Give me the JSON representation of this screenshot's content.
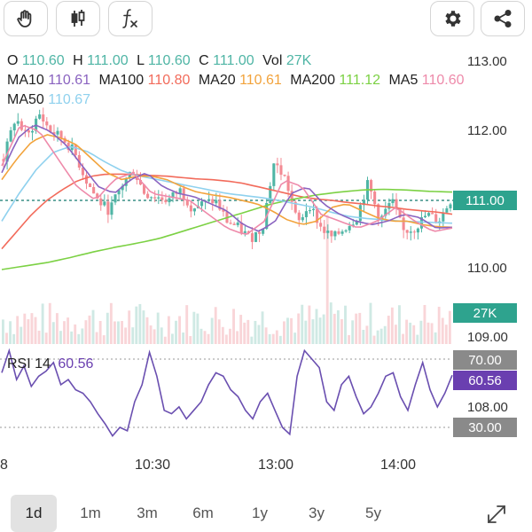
{
  "colors": {
    "up": "#4fb5a5",
    "down": "#f38a93",
    "ma10": "#8a63c0",
    "ma100": "#f26b5b",
    "ma20": "#f2a33c",
    "ma200": "#7cd144",
    "ma5": "#ee8aaa",
    "ma50": "#8fd1ee",
    "badge_price": "#2ea38e",
    "badge_rsi": "#6a3fb0",
    "badge_gray": "#8a8a8a",
    "rsi_line": "#6a4fb0"
  },
  "toolbar": {
    "icons": [
      "hand-icon",
      "candlestick-icon",
      "function-icon",
      "gear-icon",
      "share-icon"
    ]
  },
  "ohlc": {
    "o_label": "O",
    "o_value": "110.60",
    "h_label": "H",
    "h_value": "111.00",
    "l_label": "L",
    "l_value": "110.60",
    "c_label": "C",
    "c_value": "111.00",
    "vol_label": "Vol",
    "vol_value": "27K"
  },
  "indicators": {
    "ma10_label": "MA10",
    "ma10_value": "110.61",
    "ma100_label": "MA100",
    "ma100_value": "110.80",
    "ma20_label": "MA20",
    "ma20_value": "110.61",
    "ma200_label": "MA200",
    "ma200_value": "111.12",
    "ma5_label": "MA5",
    "ma5_value": "110.60",
    "ma50_label": "MA50",
    "ma50_value": "110.67"
  },
  "rsi": {
    "label": "RSI 14",
    "value": "60.56"
  },
  "badges": {
    "price": "111.00",
    "volume": "27K",
    "rsi_high": "70.00",
    "rsi_value": "60.56",
    "rsi_low": "30.00"
  },
  "range_tabs": [
    "1d",
    "1m",
    "3m",
    "6m",
    "1y",
    "3y",
    "5y"
  ],
  "active_range": "1d",
  "chart_data": [
    {
      "type": "candlestick",
      "title": "",
      "ylim": [
        109.0,
        113.1
      ],
      "yticks": [
        "113.00",
        "112.00",
        "111.00",
        "110.00",
        "109.00"
      ],
      "x_ticks": [
        "8",
        "10:30",
        "13:00",
        "14:00"
      ],
      "last_price": 111.0,
      "close_path": [
        111.6,
        112.2,
        111.9,
        112.25,
        112.0,
        111.9,
        111.7,
        111.3,
        111.0,
        110.85,
        111.2,
        111.45,
        111.1,
        111.05,
        111.0,
        111.15,
        110.9,
        110.95,
        111.0,
        110.7,
        110.6,
        110.45,
        110.6,
        111.55,
        111.3,
        110.65,
        110.95,
        110.6,
        110.45,
        110.6,
        110.75,
        111.25,
        110.7,
        111.0,
        110.55,
        110.6,
        110.8,
        110.7,
        111.0
      ],
      "series": [
        {
          "name": "MA100",
          "values": [
            110.3,
            110.55,
            110.8,
            111.0,
            111.15,
            111.28,
            111.35,
            111.38,
            111.38,
            111.37,
            111.36,
            111.35,
            111.33,
            111.31,
            111.3,
            111.28,
            111.25,
            111.2,
            111.15,
            111.1,
            111.05,
            111.02,
            111.0,
            110.97,
            110.95,
            110.92,
            110.9,
            110.87,
            110.85,
            110.83,
            110.8
          ]
        },
        {
          "name": "MA200",
          "values": [
            110.0,
            110.05,
            110.1,
            110.17,
            110.25,
            110.32,
            110.38,
            110.45,
            110.55,
            110.65,
            110.75,
            110.85,
            110.95,
            111.02,
            111.08,
            111.12,
            111.15,
            111.16,
            111.15,
            111.13,
            111.12
          ]
        },
        {
          "name": "MA50",
          "values": [
            110.7,
            111.1,
            111.45,
            111.7,
            111.78,
            111.7,
            111.55,
            111.42,
            111.35,
            111.3,
            111.25,
            111.2,
            111.15,
            111.1,
            111.07,
            111.04,
            111.0,
            110.95,
            110.9,
            110.83,
            110.77,
            110.74,
            110.72,
            110.7,
            110.69,
            110.68,
            110.67
          ]
        },
        {
          "name": "MA20",
          "values": [
            111.3,
            111.6,
            111.85,
            111.95,
            111.9,
            111.8,
            111.6,
            111.4,
            111.3,
            111.35,
            111.35,
            111.3,
            111.2,
            111.12,
            111.08,
            111.05,
            111.0,
            110.95,
            110.85,
            110.72,
            110.65,
            110.7,
            110.9,
            110.95,
            110.85,
            110.75,
            110.7,
            110.7,
            110.65,
            110.62,
            110.61
          ]
        },
        {
          "name": "MA10",
          "values": [
            111.4,
            111.9,
            112.1,
            112.0,
            111.8,
            111.5,
            111.2,
            111.1,
            111.3,
            111.4,
            111.2,
            111.1,
            111.05,
            110.95,
            110.85,
            110.65,
            110.55,
            110.7,
            111.1,
            111.2,
            110.95,
            110.8,
            110.7,
            110.65,
            110.7,
            110.8,
            110.75,
            110.6,
            110.61
          ]
        },
        {
          "name": "MA5",
          "values": [
            111.5,
            112.1,
            112.0,
            111.6,
            111.2,
            111.0,
            111.3,
            111.4,
            111.1,
            111.05,
            111.0,
            110.8,
            110.6,
            110.5,
            110.7,
            111.3,
            111.2,
            110.8,
            110.7,
            110.6,
            110.7,
            110.9,
            110.7,
            110.55,
            110.6
          ]
        }
      ]
    },
    {
      "type": "line",
      "title": "",
      "ylim": [
        0,
        100
      ],
      "yticks": [
        "108.00"
      ],
      "levels": [
        70,
        30
      ],
      "series": [
        {
          "name": "RSI 14",
          "values": [
            62,
            75,
            58,
            66,
            54,
            60,
            63,
            68,
            55,
            58,
            52,
            50,
            45,
            38,
            32,
            25,
            30,
            28,
            45,
            55,
            74,
            60,
            40,
            38,
            42,
            35,
            40,
            45,
            55,
            62,
            60,
            52,
            48,
            40,
            35,
            45,
            50,
            40,
            30,
            26,
            60,
            75,
            70,
            65,
            45,
            40,
            55,
            60,
            48,
            38,
            42,
            50,
            60,
            62,
            48,
            40,
            55,
            68,
            52,
            42,
            50,
            60.56
          ]
        }
      ]
    }
  ]
}
